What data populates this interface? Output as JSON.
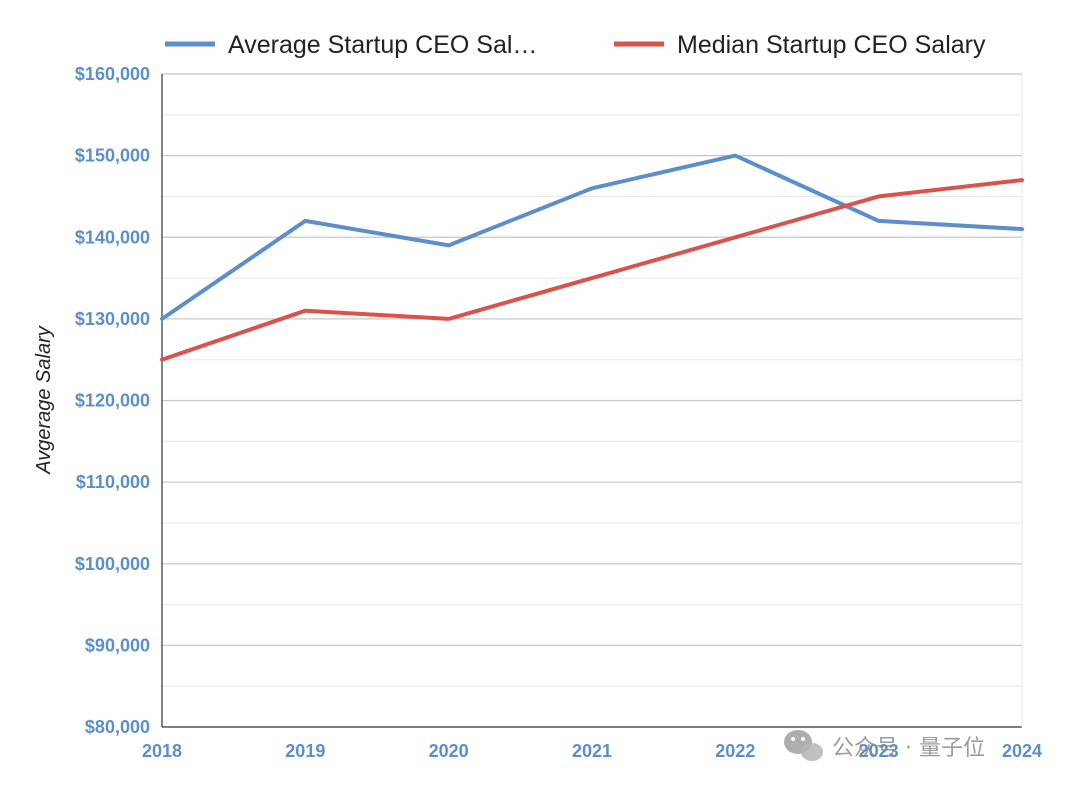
{
  "chart_data": {
    "type": "line",
    "title": "",
    "xlabel": "",
    "ylabel": "Avgerage Salary",
    "x": [
      "2018",
      "2019",
      "2020",
      "2021",
      "2022",
      "2023",
      "2024"
    ],
    "series": [
      {
        "name": "Average Startup CEO Sal…",
        "color": "#5b8fcb",
        "values": [
          130000,
          142000,
          139000,
          146000,
          150000,
          142000,
          141000
        ]
      },
      {
        "name": "Median Startup CEO Salary",
        "color": "#d9534a",
        "values": [
          125000,
          131000,
          130000,
          135000,
          140000,
          145000,
          147000
        ]
      }
    ],
    "ylim": [
      80000,
      160000
    ],
    "yticks": [
      160000,
      150000,
      140000,
      130000,
      120000,
      110000,
      100000,
      90000,
      80000
    ],
    "ytick_labels": [
      "$160,000",
      "$150,000",
      "$140,000",
      "$130,000",
      "$120,000",
      "$110,000",
      "$100,000",
      "$90,000",
      "$80,000"
    ],
    "legend_position": "top",
    "grid": true
  },
  "watermark": {
    "text": "公众号 · 量子位",
    "icon": "wechat-icon"
  }
}
